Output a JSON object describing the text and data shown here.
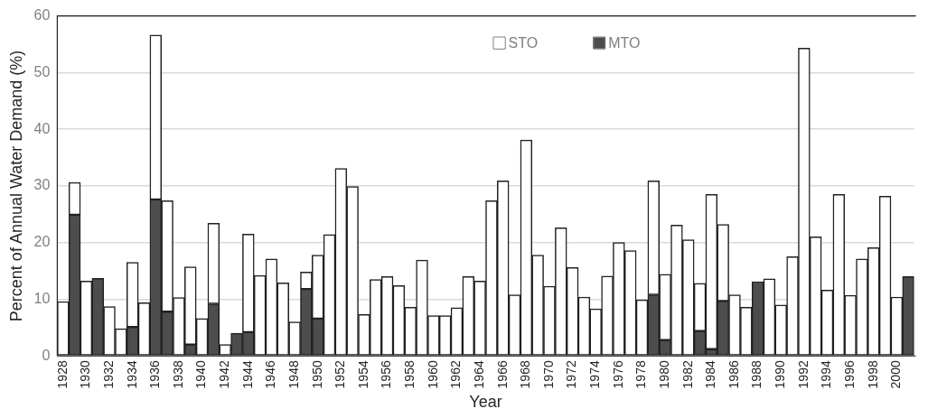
{
  "chart_data": {
    "type": "bar",
    "stacked": true,
    "xlabel": "Year",
    "ylabel": "Percent of Annual Water Demand (%)",
    "categories": [
      "1928",
      null,
      "1930",
      null,
      "1932",
      null,
      "1934",
      null,
      "1936",
      null,
      "1938",
      null,
      "1940",
      null,
      "1942",
      null,
      "1944",
      null,
      "1946",
      null,
      "1948",
      null,
      "1950",
      null,
      "1952",
      null,
      "1954",
      null,
      "1956",
      null,
      "1958",
      null,
      "1960",
      null,
      "1962",
      null,
      "1964",
      null,
      "1966",
      null,
      "1968",
      null,
      "1970",
      null,
      "1972",
      null,
      "1974",
      null,
      "1976",
      null,
      "1978",
      null,
      "1980",
      null,
      "1982",
      null,
      "1984",
      null,
      "1986",
      null,
      "1988",
      null,
      "1990",
      null,
      "1992",
      null,
      "1994",
      null,
      "1996",
      null,
      "1998",
      null,
      "2000",
      null
    ],
    "series": [
      {
        "name": "MTO",
        "color": "#4d4d4f",
        "values": [
          0,
          24.9,
          0,
          13.7,
          0,
          0,
          5.1,
          0,
          27.6,
          7.8,
          0,
          2.0,
          0,
          9.2,
          0,
          4.0,
          4.2,
          0,
          0,
          0,
          0,
          11.8,
          6.6,
          0,
          0,
          0,
          0,
          0,
          0,
          0,
          0,
          0,
          0,
          0,
          0,
          0,
          0,
          0,
          0,
          0,
          0,
          0,
          0,
          0,
          0,
          0,
          0,
          0,
          0,
          0,
          0,
          10.8,
          2.8,
          0,
          0,
          4.4,
          1.2,
          9.7,
          0,
          0,
          13.1,
          0,
          0,
          0,
          0,
          0,
          0,
          0,
          0,
          0,
          0,
          0,
          0,
          14.0
        ]
      },
      {
        "name": "STO",
        "color": "#ffffff",
        "values": [
          9.6,
          5.7,
          13.2,
          0,
          8.7,
          4.8,
          11.4,
          9.4,
          29.0,
          19.6,
          10.3,
          13.7,
          6.6,
          14.2,
          2.0,
          0,
          17.3,
          14.2,
          17.1,
          12.9,
          6.0,
          3.0,
          11.2,
          21.4,
          33.1,
          29.9,
          7.3,
          13.5,
          14.0,
          12.4,
          8.6,
          16.9,
          7.1,
          7.1,
          8.5,
          14.0,
          13.2,
          27.4,
          30.9,
          10.8,
          38.1,
          17.8,
          12.3,
          22.6,
          15.6,
          10.4,
          8.3,
          14.1,
          20.0,
          18.6,
          9.9,
          20.1,
          11.6,
          23.1,
          20.5,
          8.4,
          27.3,
          13.5,
          10.8,
          8.6,
          0,
          13.6,
          9.0,
          17.5,
          54.3,
          21.0,
          11.6,
          28.5,
          10.7,
          17.1,
          19.1,
          28.2,
          10.4,
          0
        ]
      }
    ],
    "ylim": [
      0,
      60
    ],
    "yticks": [
      0,
      10,
      20,
      30,
      40,
      50,
      60
    ],
    "grid": "y",
    "legend": "top"
  }
}
